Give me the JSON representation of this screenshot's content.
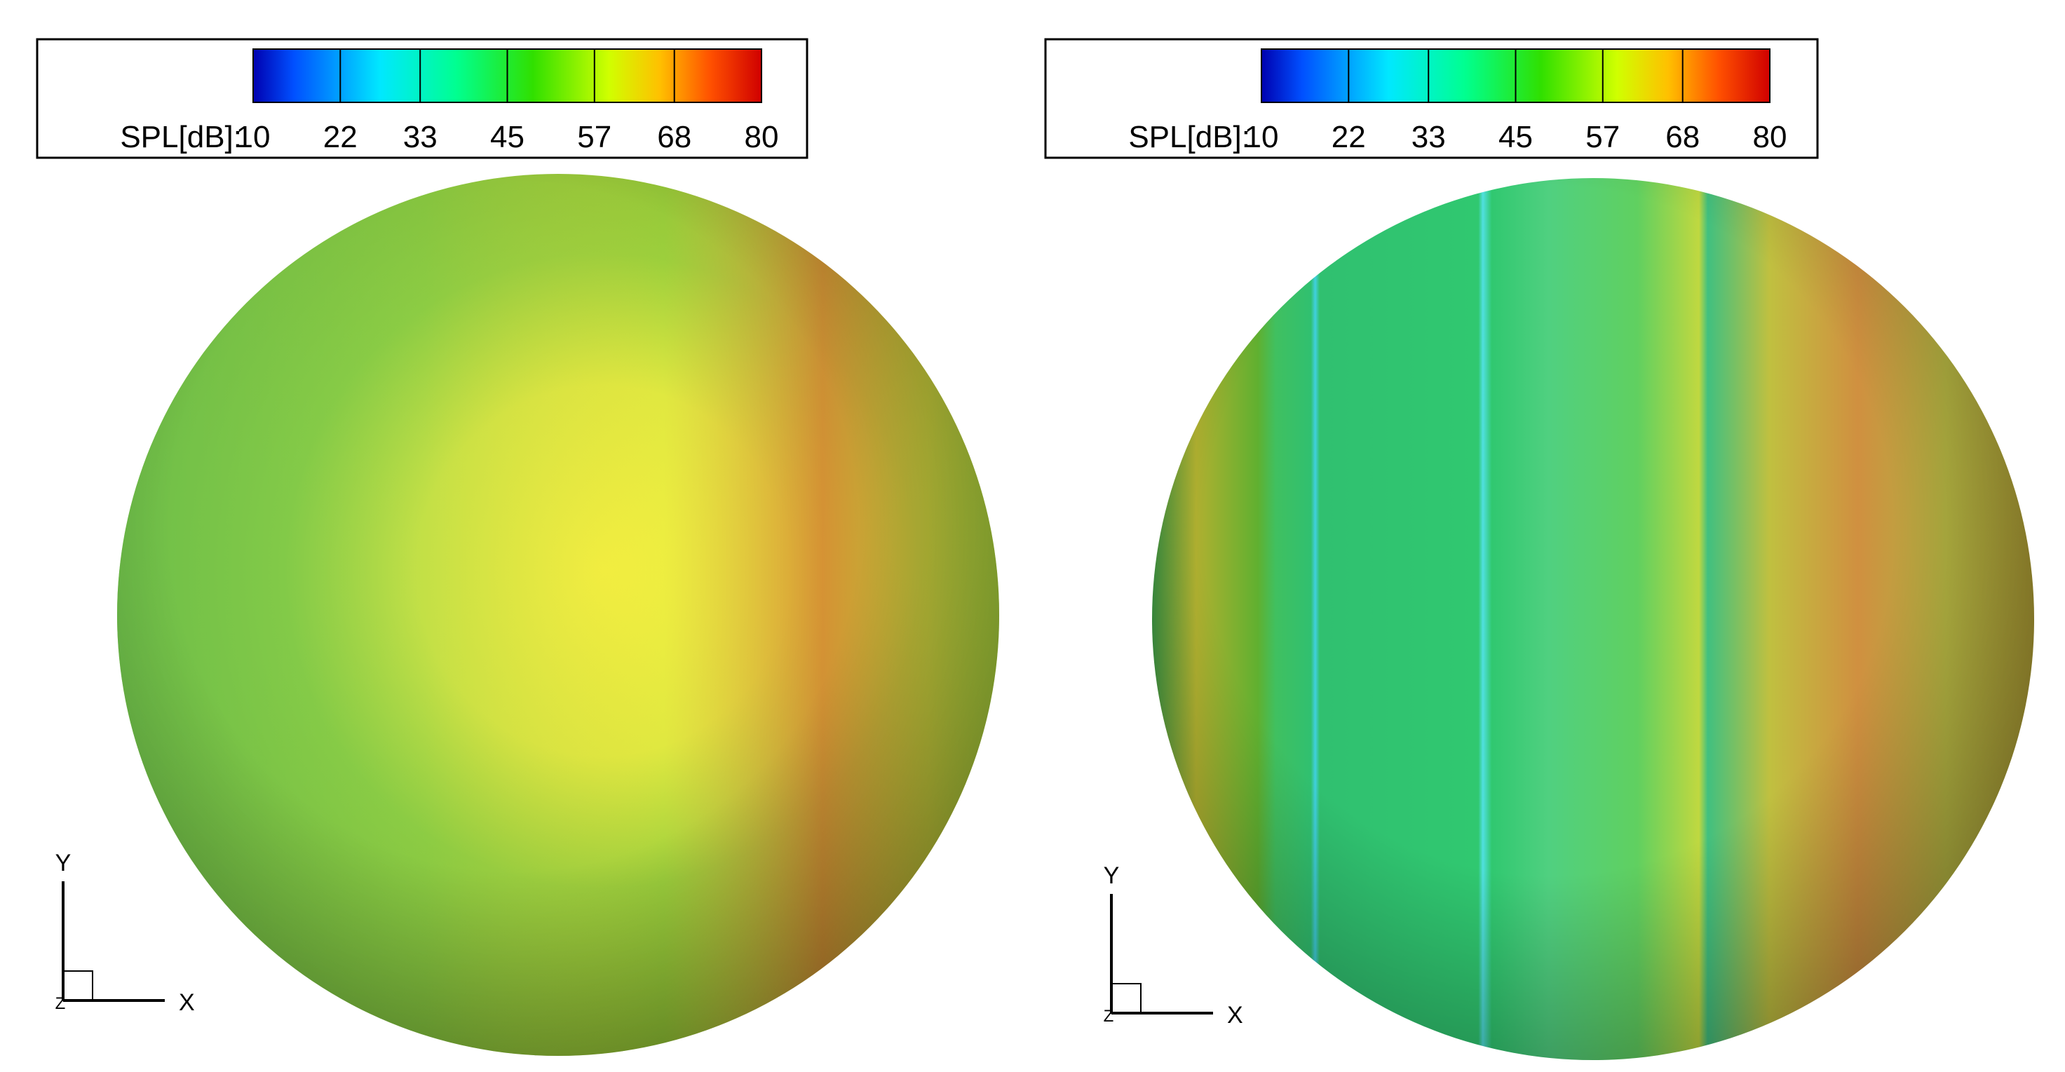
{
  "panels": [
    {
      "legend": {
        "label": "SPL[dB]:",
        "ticks": [
          10,
          22,
          33,
          45,
          57,
          68,
          80
        ],
        "lim": [
          10,
          80
        ]
      },
      "axes": {
        "x": "X",
        "y": "Y",
        "z": "Z"
      }
    },
    {
      "legend": {
        "label": "SPL[dB]:",
        "ticks": [
          10,
          22,
          33,
          45,
          57,
          68,
          80
        ],
        "lim": [
          10,
          80
        ]
      },
      "axes": {
        "x": "X",
        "y": "Y",
        "z": "Z"
      }
    }
  ]
}
